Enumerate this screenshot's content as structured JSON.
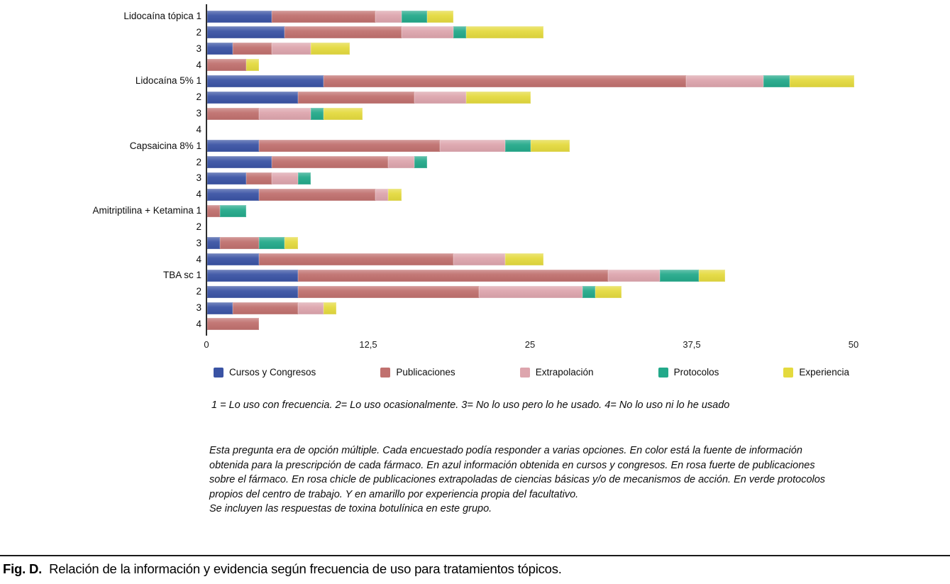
{
  "chart_data": {
    "type": "bar",
    "variant": "horizontal-stacked",
    "title": "",
    "xlabel": "",
    "ylabel": "",
    "xlim": [
      0,
      50
    ],
    "grid": false,
    "legend_position": "bottom",
    "x_ticks": [
      {
        "value": 0,
        "label": "0"
      },
      {
        "value": 12.5,
        "label": "12,5"
      },
      {
        "value": 25,
        "label": "25"
      },
      {
        "value": 37.5,
        "label": "37,5"
      },
      {
        "value": 50,
        "label": "50"
      }
    ],
    "series": [
      {
        "name": "Cursos y Congresos",
        "color": "#3a53a4"
      },
      {
        "name": "Publicaciones",
        "color": "#c0706e"
      },
      {
        "name": "Extrapolación",
        "color": "#dda5ad"
      },
      {
        "name": "Protocolos",
        "color": "#23a98a"
      },
      {
        "name": "Experiencia",
        "color": "#e4da3e"
      }
    ],
    "rows": [
      {
        "label": "Lidocaína tópica 1",
        "values": [
          5,
          8,
          2,
          2,
          2
        ]
      },
      {
        "label": "2",
        "values": [
          6,
          9,
          4,
          1,
          6
        ]
      },
      {
        "label": "3",
        "values": [
          2,
          3,
          3,
          0,
          3
        ]
      },
      {
        "label": "4",
        "values": [
          0,
          3,
          0,
          0,
          1
        ]
      },
      {
        "label": "Lidocaína 5% 1",
        "values": [
          9,
          28,
          6,
          2,
          5
        ]
      },
      {
        "label": "2",
        "values": [
          7,
          9,
          4,
          0,
          5
        ]
      },
      {
        "label": "3",
        "values": [
          0,
          4,
          4,
          1,
          3
        ]
      },
      {
        "label": "4",
        "values": [
          0,
          0,
          0,
          0,
          0
        ]
      },
      {
        "label": "Capsaicina 8% 1",
        "values": [
          4,
          14,
          5,
          2,
          3
        ]
      },
      {
        "label": "2",
        "values": [
          5,
          9,
          2,
          1,
          0
        ]
      },
      {
        "label": "3",
        "values": [
          3,
          2,
          2,
          1,
          0
        ]
      },
      {
        "label": "4",
        "values": [
          4,
          9,
          1,
          0,
          1
        ]
      },
      {
        "label": "Amitriptilina + Ketamina 1",
        "values": [
          0,
          1,
          0,
          2,
          0
        ]
      },
      {
        "label": "2",
        "values": [
          0,
          0,
          0,
          0,
          0
        ]
      },
      {
        "label": "3",
        "values": [
          1,
          3,
          0,
          2,
          1
        ]
      },
      {
        "label": "4",
        "values": [
          4,
          15,
          4,
          0,
          3
        ]
      },
      {
        "label": "TBA sc 1",
        "values": [
          7,
          24,
          4,
          3,
          2
        ]
      },
      {
        "label": "2",
        "values": [
          7,
          14,
          8,
          1,
          2
        ]
      },
      {
        "label": "3",
        "values": [
          2,
          5,
          2,
          0,
          1
        ]
      },
      {
        "label": "4",
        "values": [
          0,
          4,
          0,
          0,
          0
        ]
      }
    ]
  },
  "notes": {
    "scale_note": "1 = Lo uso con frecuencia. 2= Lo uso ocasionalmente. 3= No lo uso pero lo he usado. 4= No lo uso ni lo he usado",
    "description": "Esta pregunta era de opción múltiple. Cada encuestado podía responder a varias opciones. En color está la fuente de información obtenida para la prescripción de cada fármaco. En azul información obtenida en cursos y congresos. En rosa fuerte de publicaciones sobre el fármaco. En rosa chicle de publicaciones extrapoladas de ciencias básicas y/o de mecanismos de acción. En verde protocolos propios del centro de trabajo. Y en amarillo por experiencia propia del facultativo.",
    "inclusion_note": "Se incluyen las respuestas de toxina botulínica en este grupo."
  },
  "caption": {
    "label": "Fig. D.",
    "text": "Relación de la información y evidencia según frecuencia de uso para tratamientos tópicos."
  }
}
